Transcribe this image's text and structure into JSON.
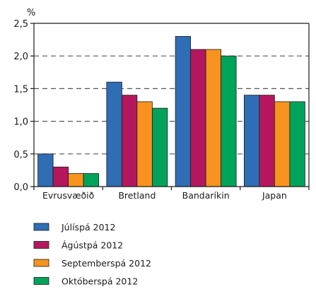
{
  "chart_data": {
    "type": "bar",
    "ylabel": "%",
    "ylim": [
      0,
      2.5
    ],
    "yticks": [
      "0,0",
      "0,5",
      "1,0",
      "1,5",
      "2,0",
      "2,5"
    ],
    "gridlines": [
      0.5,
      1.0,
      1.5,
      2.0
    ],
    "categories": [
      "Evrusvæðið",
      "Bretland",
      "Bandaríkin",
      "Japan"
    ],
    "series": [
      {
        "name": "Júlíspá 2012",
        "color": "#2f6db5",
        "values": [
          0.5,
          1.6,
          2.3,
          1.4
        ]
      },
      {
        "name": "Ágústpá 2012",
        "color": "#b5175f",
        "values": [
          0.3,
          1.4,
          2.1,
          1.4
        ]
      },
      {
        "name": "Septemberspá 2012",
        "color": "#f7931e",
        "values": [
          0.2,
          1.3,
          2.1,
          1.3
        ]
      },
      {
        "name": "Októberspá 2012",
        "color": "#00a35a",
        "values": [
          0.2,
          1.2,
          2.0,
          1.3
        ]
      }
    ],
    "legend_position": "bottom-left"
  }
}
